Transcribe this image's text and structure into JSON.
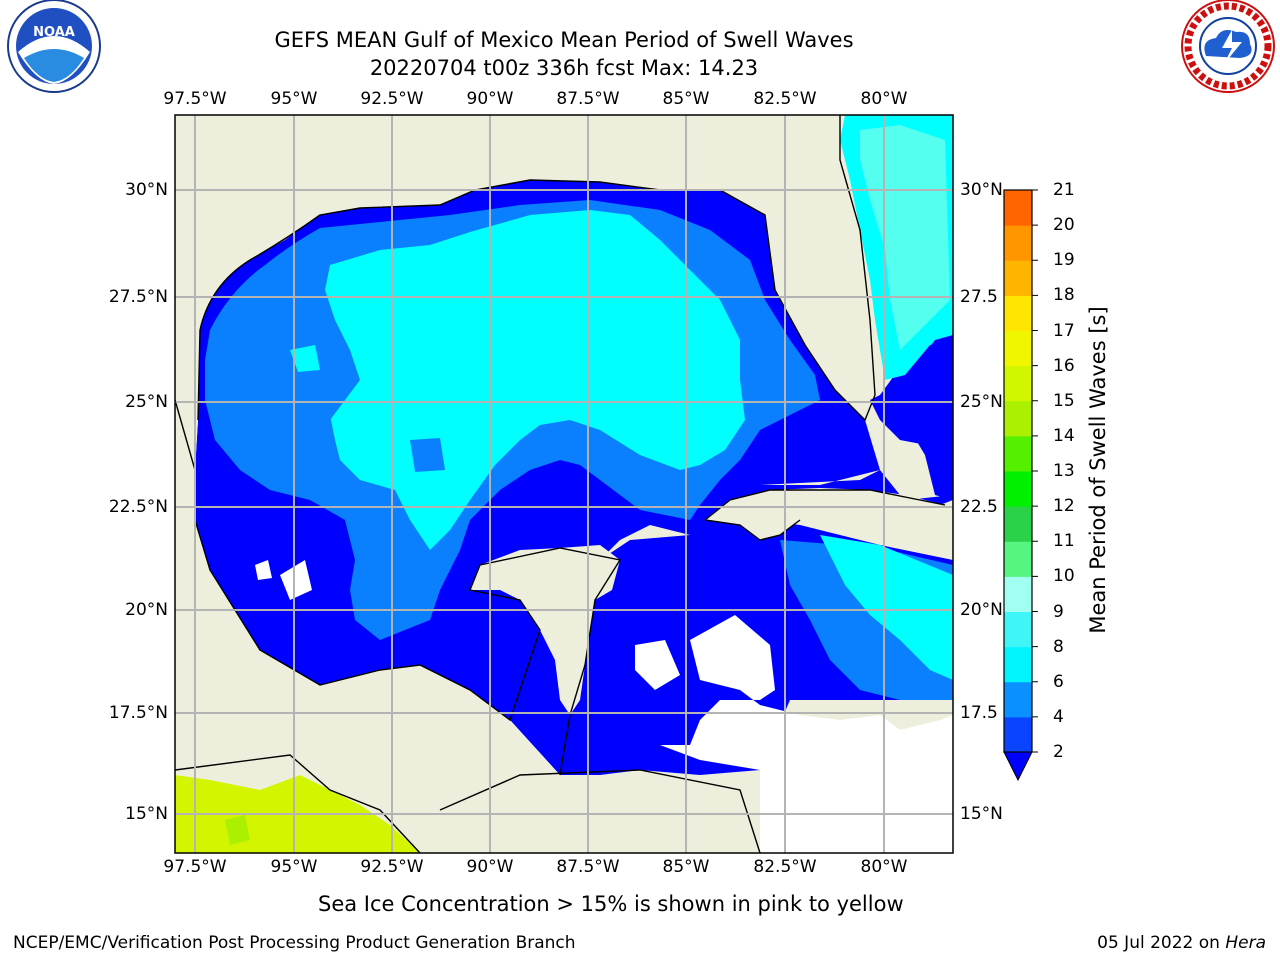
{
  "header": {
    "title_line1": "GEFS MEAN Gulf of Mexico Mean Period of Swell Waves",
    "title_line2": "20220704 t00z 336h fcst   Max: 14.23"
  },
  "logos": {
    "left": "NOAA",
    "right": "NATIONAL WEATHER SERVICE"
  },
  "map": {
    "lon_ticks": [
      "97.5°W",
      "95°W",
      "92.5°W",
      "90°W",
      "87.5°W",
      "85°W",
      "82.5°W",
      "80°W"
    ],
    "lat_ticks_left": [
      "30°N",
      "27.5°N",
      "25°N",
      "22.5°N",
      "20°N",
      "17.5°N",
      "15°N"
    ],
    "lat_ticks_right": [
      "30°N",
      "27.5",
      "25°N",
      "22.5",
      "20°N",
      "17.5",
      "15°N"
    ],
    "colors": {
      "land": "#eeeedc",
      "ocean_unfilled": "#ffffff",
      "grid": "#b4b4b4",
      "coast": "#000000"
    }
  },
  "colorbar": {
    "label": "Mean Period of Swell Waves [s]",
    "ticks": [
      "2",
      "4",
      "6",
      "8",
      "9",
      "10",
      "11",
      "12",
      "13",
      "14",
      "15",
      "16",
      "17",
      "18",
      "19",
      "20",
      "21"
    ],
    "colors": [
      "#0a44ff",
      "#0a90ff",
      "#00f5ff",
      "#3ff5f5",
      "#a0fff0",
      "#55f57f",
      "#2ad24a",
      "#00f000",
      "#55f000",
      "#aaf000",
      "#d2f500",
      "#f0f500",
      "#ffe600",
      "#ffb400",
      "#ff9600",
      "#ff6400",
      "#ff3200",
      "#ff0000"
    ],
    "under_color": "#0000ff"
  },
  "subtitle": "Sea Ice Concentration > 15% is shown in pink to yellow",
  "footer": {
    "left": "NCEP/EMC/Verification Post Processing Product Generation Branch",
    "right_prefix": "05 Jul 2022 on ",
    "right_host": "Hera"
  }
}
